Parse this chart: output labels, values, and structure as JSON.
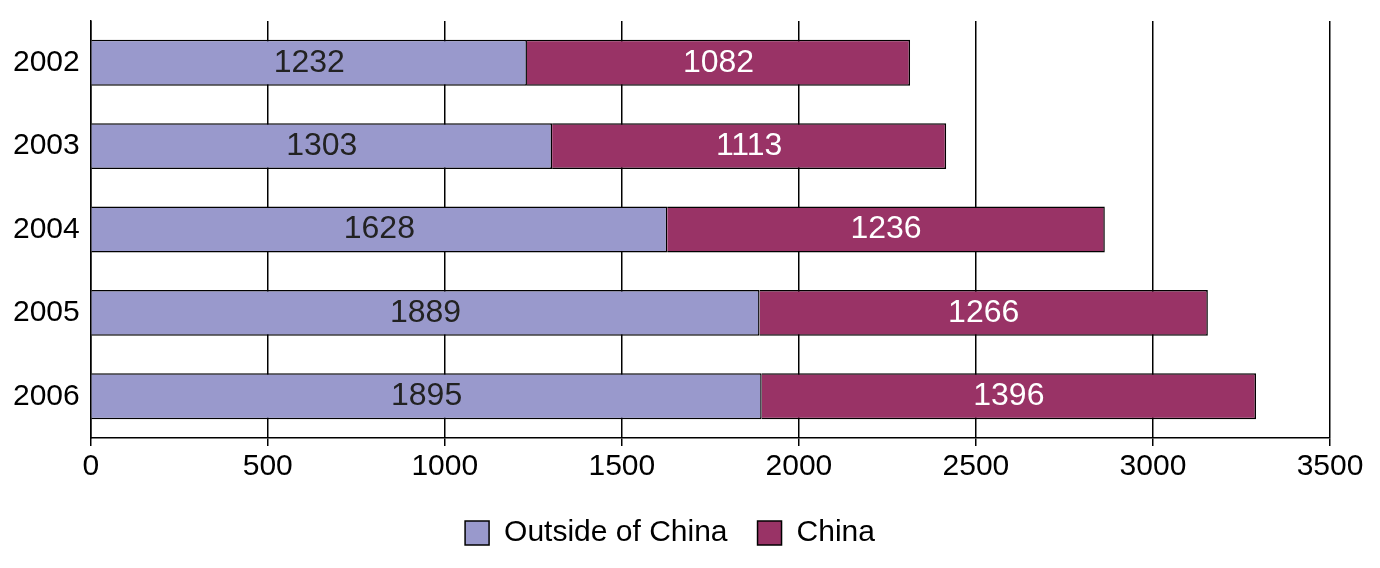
{
  "chart_data": {
    "type": "bar",
    "orientation": "horizontal",
    "stacked": true,
    "categories": [
      "2002",
      "2003",
      "2004",
      "2005",
      "2006"
    ],
    "series": [
      {
        "name": "Outside of China",
        "color": "#9999cc",
        "values": [
          1232,
          1303,
          1628,
          1889,
          1895
        ]
      },
      {
        "name": "China",
        "color": "#993366",
        "values": [
          1082,
          1113,
          1236,
          1266,
          1396
        ]
      }
    ],
    "xlim": [
      0,
      3500
    ],
    "xticks": [
      0,
      500,
      1000,
      1500,
      2000,
      2500,
      3000,
      3500
    ],
    "grid": "x",
    "legend": "bottom",
    "data_labels": true
  }
}
